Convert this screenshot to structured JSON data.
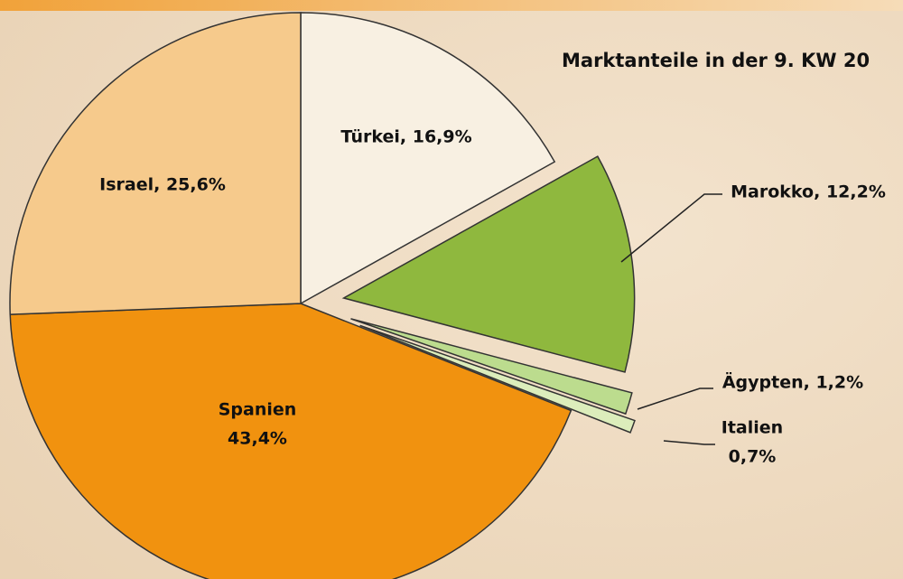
{
  "chart_data": {
    "type": "pie",
    "title": "Marktanteile in der 9. KW 20",
    "values": [
      16.9,
      12.2,
      1.2,
      0.7,
      43.4,
      25.6
    ],
    "value_labels": [
      [
        "Türkei, 16,9%"
      ],
      [
        "Marokko, 12,2%"
      ],
      [
        "Ägypten, 1,2%"
      ],
      [
        "Italien",
        "0,7%"
      ],
      [
        "Spanien",
        "43,4%"
      ],
      [
        "Israel, 25,6%"
      ]
    ],
    "colors": [
      "#f8f0e2",
      "#8fb83e",
      "#bcdc8e",
      "#dcedbb",
      "#f1920f",
      "#f6ca8c"
    ]
  }
}
